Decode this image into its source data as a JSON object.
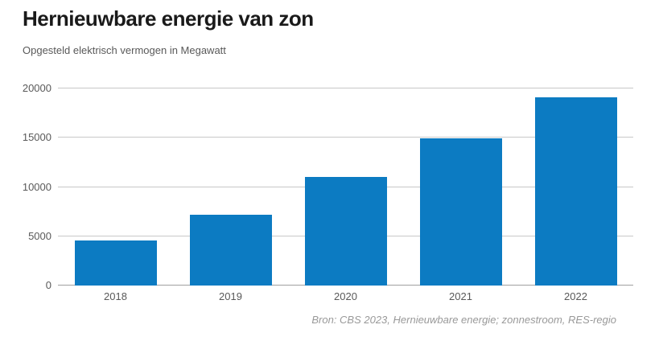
{
  "header": {
    "title": "Hernieuwbare energie van zon",
    "subtitle": "Opgesteld elektrisch vermogen in Megawatt"
  },
  "footer": {
    "source": "Bron: CBS 2023, Hernieuwbare energie; zonnestroom, RES-regio"
  },
  "colors": {
    "bar": "#0c7bc2",
    "grid": "#c8c8c8",
    "zero_axis": "#a0a0a0",
    "title_text": "#1a1a1a",
    "muted_text": "#595959",
    "source_text": "#999999"
  },
  "chart_data": {
    "type": "bar",
    "title": "Hernieuwbare energie van zon",
    "subtitle": "Opgesteld elektrisch vermogen in Megawatt",
    "categories": [
      "2018",
      "2019",
      "2020",
      "2021",
      "2022"
    ],
    "values": [
      4600,
      7200,
      11000,
      14900,
      19100
    ],
    "xlabel": "",
    "ylabel": "Opgesteld elektrisch vermogen in Megawatt",
    "ylim": [
      0,
      20000
    ],
    "yticks": [
      {
        "value": 0,
        "label": "0"
      },
      {
        "value": 5000,
        "label": "5000"
      },
      {
        "value": 10000,
        "label": "10000"
      },
      {
        "value": 15000,
        "label": "15000"
      },
      {
        "value": 20000,
        "label": "20000"
      }
    ],
    "grid": true,
    "legend": false,
    "source": "Bron: CBS 2023, Hernieuwbare energie; zonnestroom, RES-regio"
  }
}
